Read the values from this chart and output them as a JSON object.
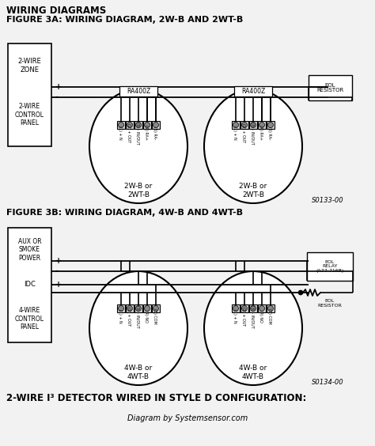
{
  "title1": "WIRING DIAGRAMS",
  "title2": "FIGURE 3A: WIRING DIAGRAM, 2W-B AND 2WT-B",
  "title3": "FIGURE 3B: WIRING DIAGRAM, 4W-B AND 4WT-B",
  "title4": "2-WIRE I³ DETECTOR WIRED IN STYLE D CONFIGURATION:",
  "footer": "Diagram by Systemsensor.com",
  "fig3a_code": "S0133-00",
  "fig3b_code": "S0134-00",
  "bg_color": "#f2f2f2",
  "line_color": "#111111",
  "label_ra400z": "RA400Z",
  "label_2wb": "2W-B or\n2WT-B",
  "label_4wb": "4W-B or\n4WT-B",
  "pins_2w": [
    "(1) + N",
    "(2) + OUT",
    "(3) - IN/OUT",
    "(4) RA+",
    "(5) RA-"
  ],
  "pins_4w": [
    "(1) + N",
    "(2) + OUT",
    "(3) - IN/OUT",
    "(4) NO",
    "(5) COM"
  ]
}
